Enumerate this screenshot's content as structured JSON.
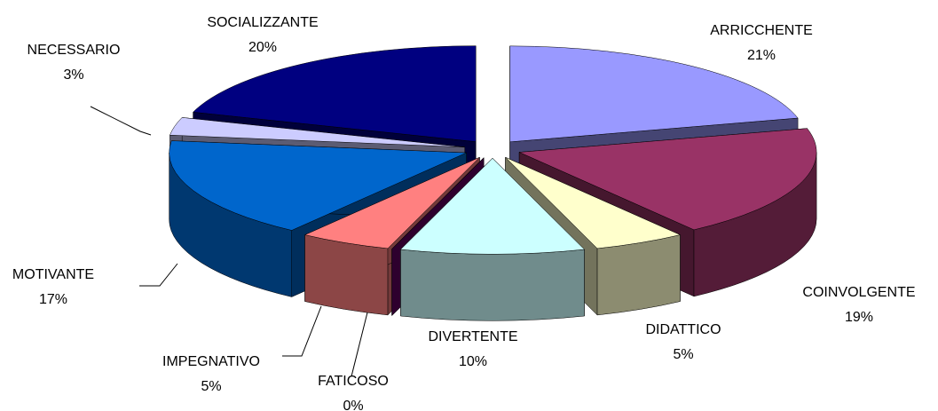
{
  "chart_data": {
    "type": "pie",
    "categories": [
      "ARRICCHENTE",
      "COINVOLGENTE",
      "DIDATTICO",
      "DIVERTENTE",
      "FATICOSO",
      "IMPEGNATIVO",
      "MOTIVANTE",
      "NECESSARIO",
      "SOCIALIZZANTE"
    ],
    "values": [
      21,
      19,
      5,
      10,
      0,
      5,
      17,
      3,
      20
    ],
    "value_labels": [
      "21%",
      "19%",
      "5%",
      "10%",
      "0%",
      "5%",
      "17%",
      "3%",
      "20%"
    ],
    "colors": [
      "#9999ff",
      "#993366",
      "#ffffcc",
      "#ccffff",
      "#660066",
      "#ff8080",
      "#0066cc",
      "#ccccff",
      "#000080"
    ]
  }
}
